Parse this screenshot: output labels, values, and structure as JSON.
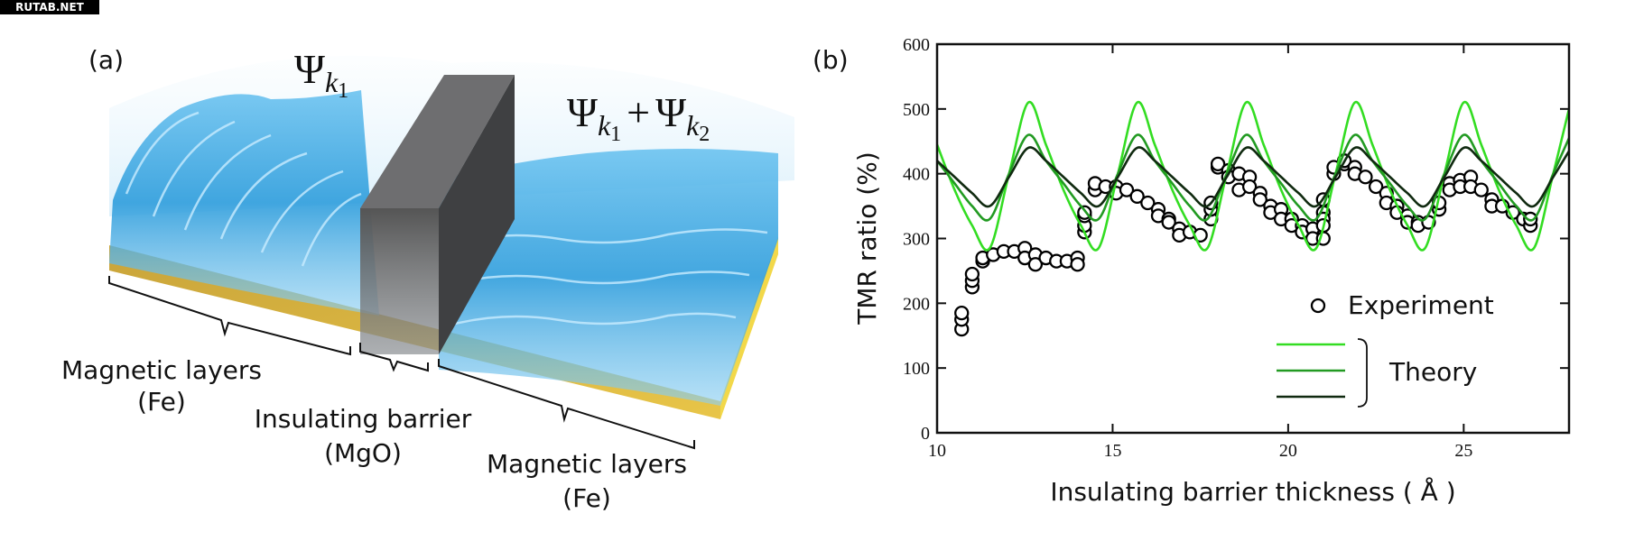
{
  "watermark": "RUTAB.NET",
  "panel_a": {
    "label": "(a)",
    "psi_left": [
      "Ψ",
      "k",
      "1"
    ],
    "psi_right": [
      "Ψ",
      "k",
      "1",
      "+",
      "Ψ",
      "k",
      "2"
    ],
    "left_layer": [
      "Magnetic layers",
      "(Fe)"
    ],
    "barrier": [
      "Insulating barrier",
      "(MgO)"
    ],
    "right_layer": [
      "Magnetic layers",
      "(Fe)"
    ]
  },
  "chart_data": {
    "type": "line",
    "panel_label": "(b)",
    "x_label": "Insulating barrier thickness ( Å )",
    "y_label": "TMR ratio (%)",
    "xlim": [
      10,
      28
    ],
    "xticks": [
      10,
      15,
      20,
      25
    ],
    "ylim": [
      0,
      600
    ],
    "yticks": [
      0,
      100,
      200,
      300,
      400,
      500,
      600
    ],
    "theory_label": "Theory",
    "x": [
      10,
      10.5,
      11.0,
      11.5,
      12.05,
      12.6,
      13.1,
      13.6,
      14.1,
      14.6,
      15.15,
      15.7,
      16.2,
      16.7,
      17.2,
      17.7,
      18.25,
      18.8,
      19.3,
      19.8,
      20.3,
      20.8,
      21.35,
      21.9,
      22.4,
      22.9,
      23.4,
      23.9,
      24.45,
      25.0,
      25.5,
      26.0,
      26.5,
      27.0,
      27.55,
      28.0
    ],
    "series": [
      {
        "name": "Experiment",
        "type": "scatter",
        "color": "#000000",
        "x": [
          10.7,
          10.7,
          10.7,
          11.0,
          11.0,
          11.0,
          11.3,
          11.3,
          11.6,
          11.9,
          12.2,
          12.5,
          12.5,
          12.8,
          12.8,
          13.1,
          13.4,
          13.7,
          14.0,
          14.0,
          14.2,
          14.2,
          14.2,
          14.2,
          14.5,
          14.5,
          14.8,
          15.1,
          15.1,
          15.4,
          15.7,
          16.0,
          16.3,
          16.3,
          16.6,
          16.6,
          16.9,
          16.9,
          17.2,
          17.5,
          17.8,
          17.8,
          17.8,
          18.0,
          18.0,
          18.3,
          18.3,
          18.6,
          18.6,
          18.9,
          18.9,
          19.2,
          19.2,
          19.5,
          19.5,
          19.8,
          19.8,
          20.1,
          20.1,
          20.4,
          20.4,
          20.7,
          20.7,
          21.0,
          21.0,
          21.0,
          21.0,
          21.0,
          21.3,
          21.3,
          21.6,
          21.6,
          21.9,
          21.9,
          22.2,
          22.5,
          22.8,
          22.8,
          23.1,
          23.1,
          23.4,
          23.4,
          23.7,
          23.7,
          24.0,
          24.3,
          24.3,
          24.6,
          24.6,
          24.9,
          24.9,
          25.2,
          25.2,
          25.5,
          25.8,
          25.8,
          26.1,
          26.4,
          26.7,
          26.9,
          26.9
        ],
        "values": [
          160,
          175,
          185,
          225,
          235,
          245,
          265,
          270,
          275,
          280,
          280,
          285,
          270,
          275,
          260,
          270,
          265,
          265,
          270,
          260,
          310,
          320,
          335,
          340,
          375,
          385,
          380,
          380,
          370,
          375,
          365,
          355,
          345,
          335,
          330,
          325,
          315,
          305,
          310,
          305,
          330,
          345,
          355,
          410,
          415,
          405,
          395,
          400,
          375,
          395,
          380,
          370,
          360,
          350,
          340,
          345,
          330,
          330,
          320,
          320,
          310,
          315,
          300,
          360,
          340,
          330,
          320,
          300,
          400,
          410,
          415,
          420,
          410,
          400,
          395,
          380,
          370,
          355,
          350,
          340,
          335,
          325,
          325,
          320,
          325,
          345,
          355,
          385,
          375,
          390,
          380,
          395,
          380,
          375,
          360,
          350,
          350,
          340,
          330,
          320,
          330
        ]
      },
      {
        "color": "#33dd22",
        "values": [
          445,
          375,
          320,
          285,
          400,
          510,
          445,
          375,
          320,
          285,
          400,
          510,
          445,
          375,
          320,
          285,
          400,
          510,
          445,
          375,
          320,
          285,
          400,
          510,
          445,
          375,
          320,
          285,
          400,
          510,
          445,
          375,
          320,
          285,
          400,
          500
        ]
      },
      {
        "color": "#229a22",
        "values": [
          420,
          385,
          350,
          330,
          400,
          460,
          420,
          385,
          350,
          330,
          400,
          460,
          420,
          385,
          350,
          330,
          400,
          460,
          420,
          385,
          350,
          330,
          400,
          460,
          420,
          385,
          350,
          330,
          400,
          460,
          420,
          385,
          350,
          330,
          400,
          455
        ]
      },
      {
        "color": "#102a10",
        "values": [
          420,
          395,
          370,
          350,
          395,
          440,
          420,
          395,
          370,
          350,
          395,
          440,
          420,
          395,
          370,
          350,
          395,
          440,
          420,
          395,
          370,
          350,
          395,
          440,
          420,
          395,
          370,
          350,
          395,
          440,
          420,
          395,
          370,
          350,
          395,
          435
        ]
      }
    ]
  }
}
